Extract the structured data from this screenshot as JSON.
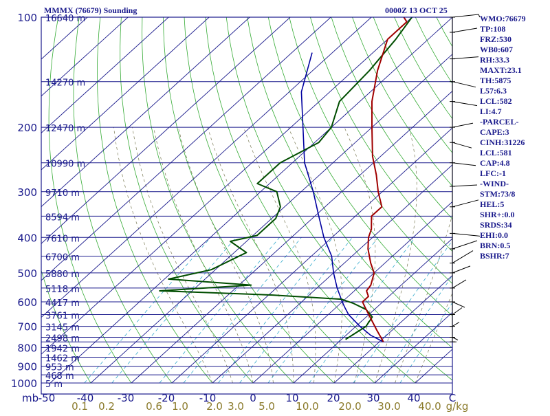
{
  "header": {
    "title": "MMMX (76679) Sounding",
    "time": "0000Z 13 OCT 25"
  },
  "colors": {
    "temperature": "#a00000",
    "dewpoint": "#004d00",
    "parcel": "#0000a0",
    "isobar": "#1a1a8c",
    "skewed_isotherm": "#1a1a8c",
    "dry_adiabat": "#33aa33",
    "moist_adiabat": "#7a7a55",
    "mixing_ratio": "#33aacc",
    "text": "#1a1a8c",
    "mixing_ratio_label": "#8a7a2a"
  },
  "chart_data": {
    "type": "skew-t",
    "pressure_axis_label": "mb",
    "temperature_axis_unit": "C",
    "mixing_ratio_unit": "g/kg",
    "pressure_ticks": [
      100,
      200,
      300,
      400,
      500,
      600,
      700,
      800,
      900,
      1000
    ],
    "temperature_ticks": [
      "-50",
      "-40",
      "-30",
      "-20",
      "-10",
      "0",
      "10",
      "20",
      "30",
      "40",
      "C"
    ],
    "mixing_ratio_ticks": [
      "0.1",
      "0.2",
      "0.6",
      "1.0",
      "2.0",
      "3.0",
      "5.0",
      "10.0",
      "20.0",
      "30.0",
      "40.0"
    ],
    "height_labels": [
      {
        "p": 100,
        "label": "16640 m"
      },
      {
        "p": 150,
        "label": "14270 m"
      },
      {
        "p": 200,
        "label": "12470 m"
      },
      {
        "p": 250,
        "label": "10990 m"
      },
      {
        "p": 300,
        "label": "9710 m"
      },
      {
        "p": 350,
        "label": "8594 m"
      },
      {
        "p": 400,
        "label": "7610 m"
      },
      {
        "p": 450,
        "label": "6700 m"
      },
      {
        "p": 500,
        "label": "5880 m"
      },
      {
        "p": 550,
        "label": "5118 m"
      },
      {
        "p": 600,
        "label": "4417 m"
      },
      {
        "p": 650,
        "label": "3761 m"
      },
      {
        "p": 700,
        "label": "3145 m"
      },
      {
        "p": 750,
        "label": "2498 m"
      },
      {
        "p": 800,
        "label": "1942 m"
      },
      {
        "p": 850,
        "label": "1462 m"
      },
      {
        "p": 900,
        "label": "953 m"
      },
      {
        "p": 950,
        "label": "468 m"
      },
      {
        "p": 1000,
        "label": "5 m"
      }
    ],
    "temperature_profile": [
      [
        772,
        21
      ],
      [
        715,
        16
      ],
      [
        620,
        7
      ],
      [
        600,
        5
      ],
      [
        580,
        5
      ],
      [
        560,
        3
      ],
      [
        540,
        2.5
      ],
      [
        500,
        0
      ],
      [
        470,
        -3.5
      ],
      [
        430,
        -8
      ],
      [
        400,
        -11
      ],
      [
        380,
        -12.5
      ],
      [
        350,
        -16
      ],
      [
        330,
        -16
      ],
      [
        300,
        -21
      ],
      [
        270,
        -26
      ],
      [
        240,
        -32
      ],
      [
        200,
        -40
      ],
      [
        170,
        -47
      ],
      [
        140,
        -54
      ],
      [
        115,
        -60
      ],
      [
        103,
        -60
      ],
      [
        100,
        -62
      ]
    ],
    "dewpoint_profile": [
      [
        760,
        11
      ],
      [
        740,
        11.5
      ],
      [
        700,
        12.5
      ],
      [
        660,
        11.5
      ],
      [
        630,
        8
      ],
      [
        605,
        3
      ],
      [
        590,
        -1
      ],
      [
        575,
        -19
      ],
      [
        560,
        -48
      ],
      [
        540,
        -27
      ],
      [
        520,
        -49
      ],
      [
        490,
        -41
      ],
      [
        440,
        -37
      ],
      [
        410,
        -44
      ],
      [
        395,
        -39
      ],
      [
        375,
        -39
      ],
      [
        355,
        -39
      ],
      [
        330,
        -41
      ],
      [
        300,
        -46
      ],
      [
        285,
        -53
      ],
      [
        250,
        -53
      ],
      [
        220,
        -49
      ],
      [
        200,
        -50
      ],
      [
        170,
        -55
      ],
      [
        140,
        -56
      ],
      [
        115,
        -58
      ],
      [
        100,
        -60
      ]
    ],
    "parcel_profile": [
      [
        772,
        21
      ],
      [
        740,
        16
      ],
      [
        700,
        11
      ],
      [
        650,
        5
      ],
      [
        620,
        2
      ],
      [
        600,
        0
      ],
      [
        550,
        -5
      ],
      [
        500,
        -10
      ],
      [
        450,
        -15
      ],
      [
        400,
        -22
      ],
      [
        350,
        -29
      ],
      [
        300,
        -37
      ],
      [
        250,
        -47
      ],
      [
        200,
        -57
      ],
      [
        160,
        -67
      ],
      [
        125,
        -75
      ]
    ],
    "indices": [
      "WMO:76679",
      "TP:108",
      "FRZ:530",
      "WB0:607",
      "RH:33.3",
      "MAXT:23.1",
      "TH:5875",
      "L57:6.3",
      "LCL:582",
      "LI:4.7",
      "-PARCEL-",
      "CAPE:3",
      "CINH:31226",
      "LCL:581",
      "CAP:4.8",
      "LFC:-1",
      "-WIND-",
      "STM:73/8",
      "HEL:5",
      "SHR+:0.0",
      "SRDS:34",
      "EHI:0.0",
      "BRN:0.5",
      "BSHR:7"
    ],
    "wind_barb_levels": [
      100,
      110,
      130,
      150,
      170,
      200,
      220,
      250,
      290,
      330,
      390,
      430,
      470,
      500,
      550,
      600,
      650,
      700,
      750,
      772
    ]
  }
}
